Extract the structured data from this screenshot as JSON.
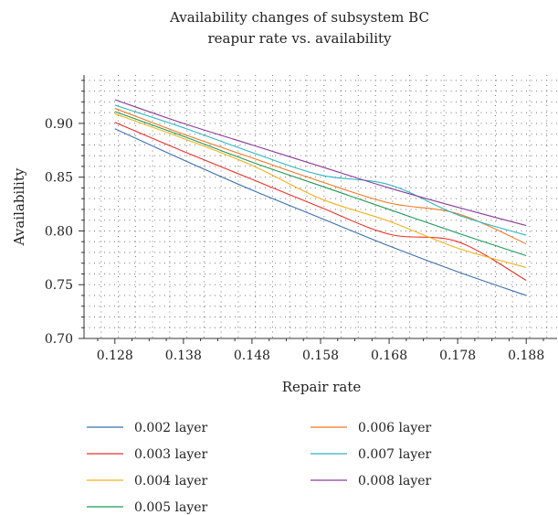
{
  "chart_data": {
    "type": "line",
    "title": [
      "Availability changes of subsystem BC",
      "reapur rate vs. availability"
    ],
    "xlabel": "Repair rate",
    "ylabel": "Availability",
    "x": [
      0.128,
      0.138,
      0.148,
      0.158,
      0.168,
      0.178,
      0.188
    ],
    "x_tick_labels": [
      "0.128",
      "0.138",
      "0.148",
      "0.158",
      "0.168",
      "0.178",
      "0.188"
    ],
    "y_ticks": [
      0.7,
      0.75,
      0.8,
      0.85,
      0.9
    ],
    "y_tick_labels": [
      "0.70",
      "0.75",
      "0.80",
      "0.85",
      "0.90"
    ],
    "xlim": [
      0.1235,
      0.1925
    ],
    "ylim": [
      0.7,
      0.945
    ],
    "grid": "dotted",
    "legend_position": "bottom",
    "series": [
      {
        "name": "0.002 layer",
        "color": "#3a6fb0",
        "values": [
          0.895,
          0.866,
          0.838,
          0.812,
          0.786,
          0.762,
          0.74
        ]
      },
      {
        "name": "0.003 layer",
        "color": "#e8312a",
        "values": [
          0.901,
          0.874,
          0.848,
          0.822,
          0.797,
          0.79,
          0.754
        ]
      },
      {
        "name": "0.004 layer",
        "color": "#f2b21c",
        "values": [
          0.909,
          0.886,
          0.861,
          0.83,
          0.809,
          0.784,
          0.766
        ]
      },
      {
        "name": "0.005 layer",
        "color": "#1e9a57",
        "values": [
          0.911,
          0.888,
          0.864,
          0.842,
          0.82,
          0.798,
          0.777
        ]
      },
      {
        "name": "0.006 layer",
        "color": "#f07821",
        "values": [
          0.914,
          0.89,
          0.868,
          0.846,
          0.826,
          0.816,
          0.788
        ]
      },
      {
        "name": "0.007 layer",
        "color": "#2ab5c5",
        "values": [
          0.917,
          0.896,
          0.873,
          0.852,
          0.843,
          0.815,
          0.796
        ]
      },
      {
        "name": "0.008 layer",
        "color": "#8e3a9a",
        "values": [
          0.922,
          0.9,
          0.88,
          0.86,
          0.84,
          0.822,
          0.805
        ]
      }
    ]
  }
}
